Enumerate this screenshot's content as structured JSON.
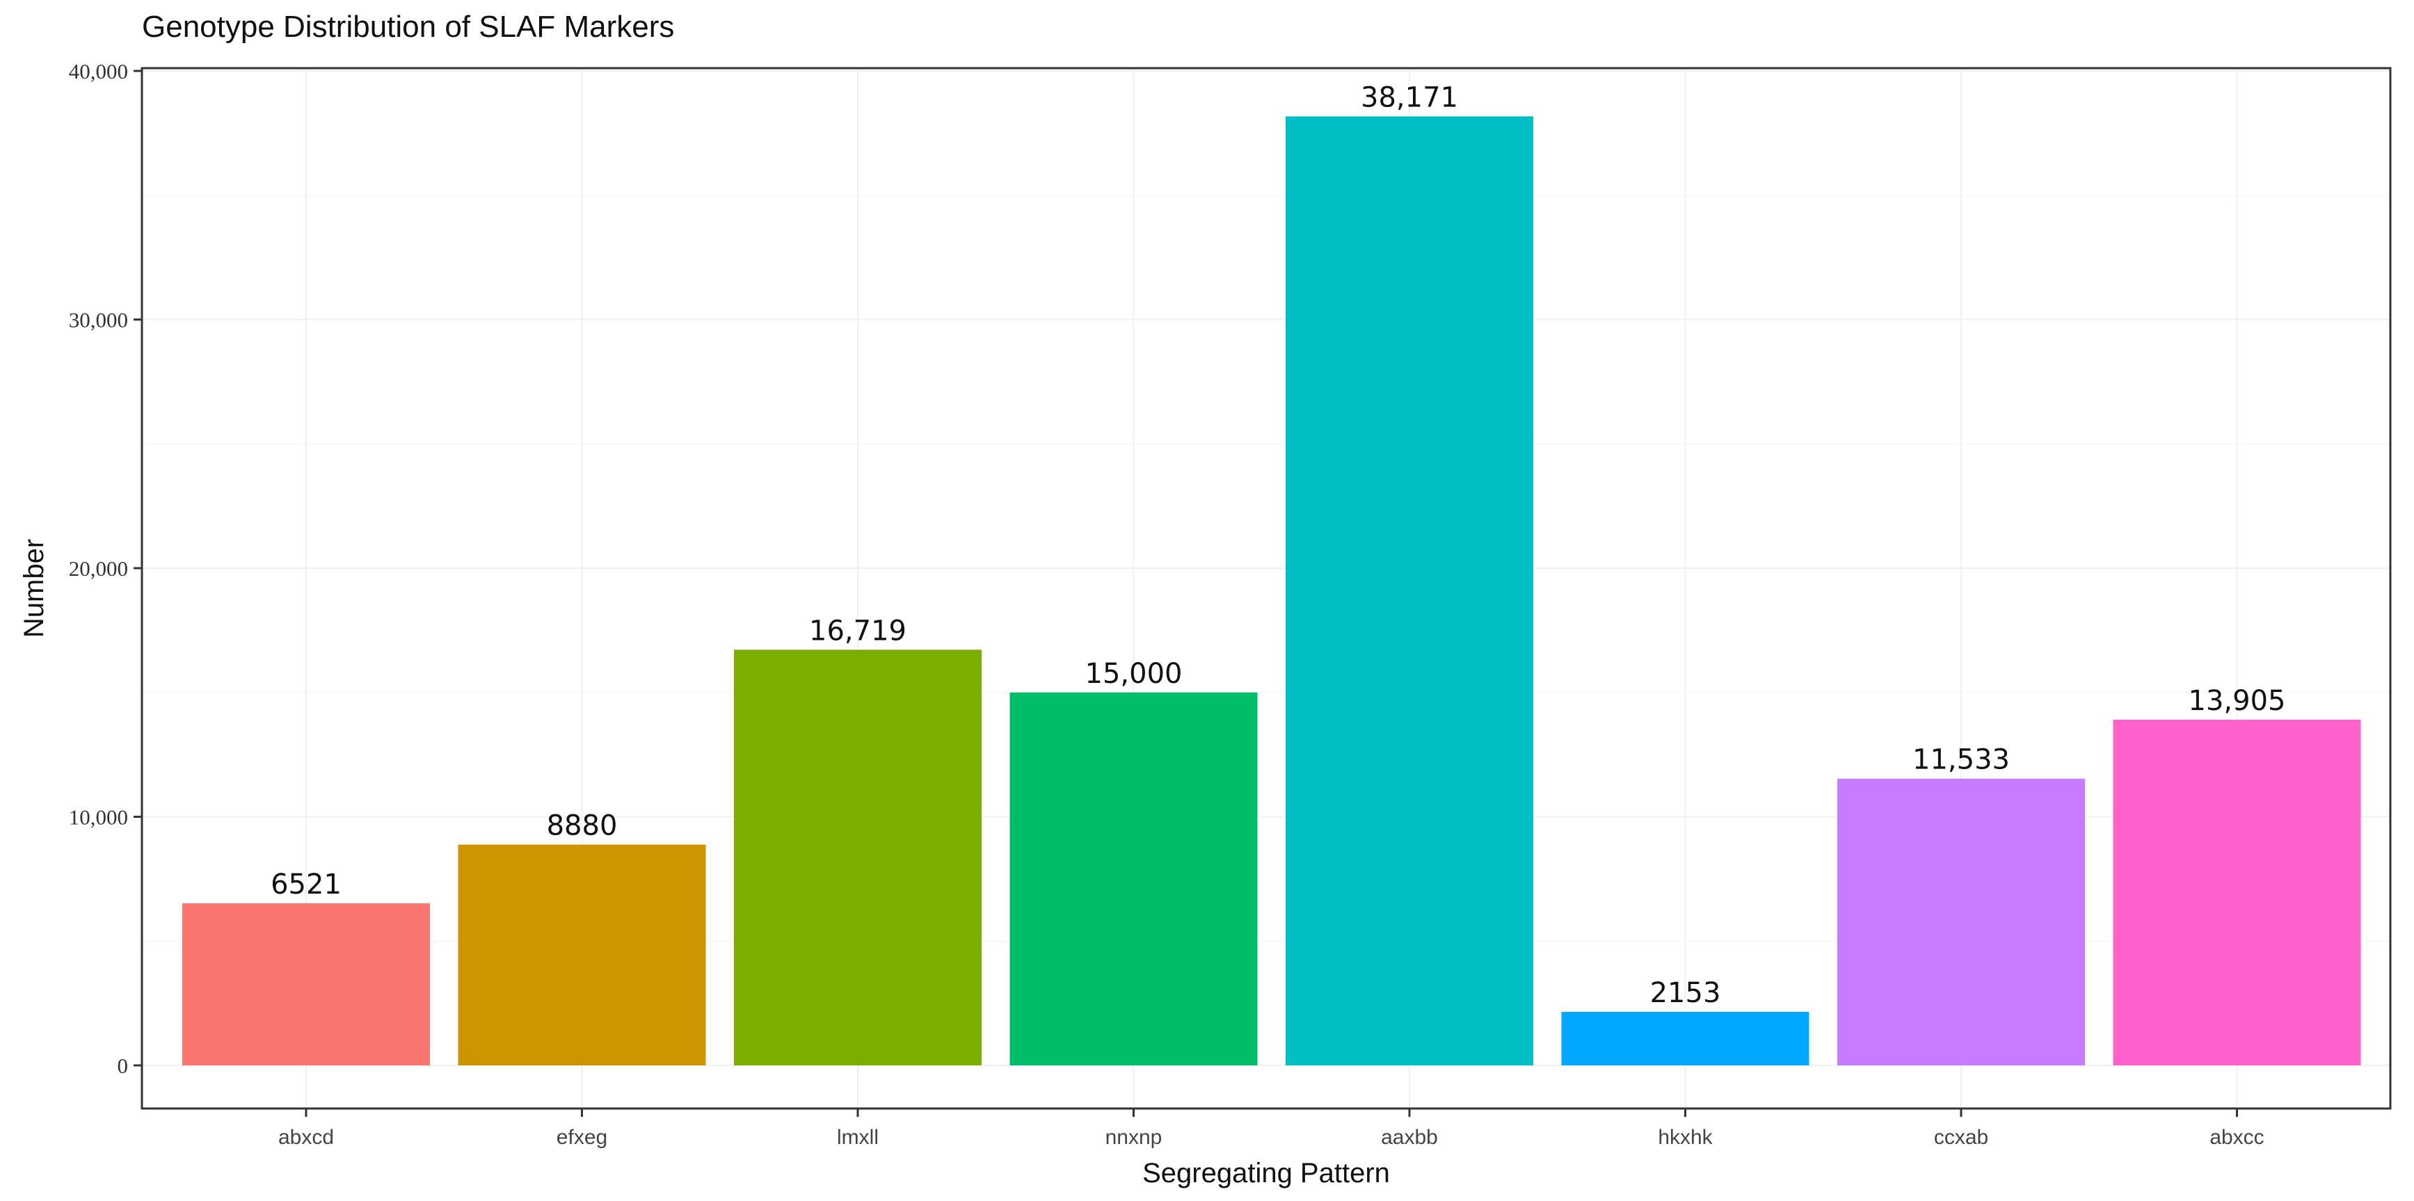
{
  "chart_data": {
    "type": "bar",
    "title": "Genotype Distribution of SLAF Markers",
    "xlabel": "Segregating Pattern",
    "ylabel": "Number",
    "categories": [
      "abxcd",
      "efxeg",
      "lmxll",
      "nnxnp",
      "aaxbb",
      "hkxhk",
      "ccxab",
      "abxcc"
    ],
    "values": [
      6521,
      8880,
      16719,
      15000,
      38171,
      2153,
      11533,
      13905
    ],
    "value_labels": [
      "6521",
      "8880",
      "16,719",
      "15,000",
      "38,171",
      "2153",
      "11,533",
      "13,905"
    ],
    "colors": [
      "#F8766D",
      "#CD9600",
      "#7CAE00",
      "#00BE67",
      "#00BFC4",
      "#00A9FF",
      "#C77CFF",
      "#FF61CC"
    ],
    "ylim": [
      0,
      40000
    ],
    "yticks": [
      0,
      10000,
      20000,
      30000,
      40000
    ],
    "ytick_labels": [
      "0",
      "10,000",
      "20,000",
      "30,000",
      "40,000"
    ],
    "grid": true,
    "legend": "none"
  }
}
